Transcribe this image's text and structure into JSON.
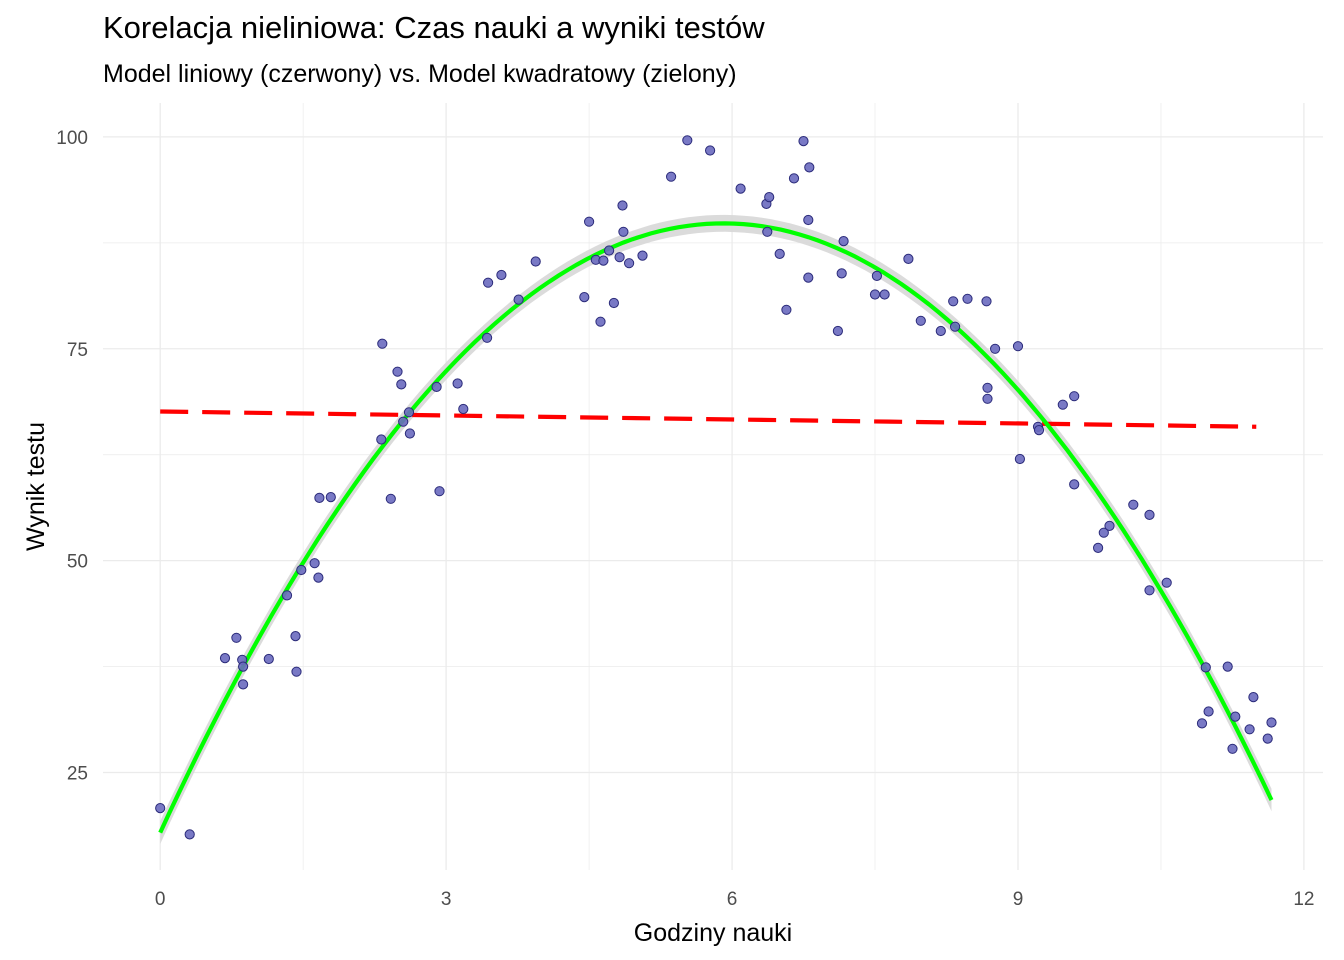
{
  "chart_data": {
    "type": "scatter",
    "title": "Korelacja nieliniowa: Czas nauki a wyniki testów",
    "subtitle": "Model liniowy (czerwony) vs. Model kwadratowy (zielony)",
    "xlabel": "Godziny nauki",
    "ylabel": "Wynik testu",
    "xlim": [
      -0.6,
      12.2
    ],
    "ylim": [
      13.5,
      104
    ],
    "xticks": [
      0,
      3,
      6,
      9,
      12
    ],
    "yticks": [
      25,
      50,
      75,
      100
    ],
    "grid": true,
    "colors": {
      "points_fill": "#6a6abf",
      "points_stroke": "#2b2b7a",
      "linear": "#ff0000",
      "quadratic": "#00ff00",
      "ribbon": "#d9d9d9",
      "grid": "#ebebeb"
    },
    "points": [
      [
        0.0,
        20.8
      ],
      [
        0.31,
        17.7
      ],
      [
        0.68,
        38.5
      ],
      [
        0.8,
        40.9
      ],
      [
        0.86,
        38.3
      ],
      [
        0.87,
        37.5
      ],
      [
        0.87,
        35.4
      ],
      [
        1.14,
        38.4
      ],
      [
        1.33,
        45.9
      ],
      [
        1.42,
        41.1
      ],
      [
        1.43,
        36.9
      ],
      [
        1.48,
        48.9
      ],
      [
        1.62,
        49.7
      ],
      [
        1.66,
        48.0
      ],
      [
        1.67,
        57.4
      ],
      [
        1.79,
        57.5
      ],
      [
        2.32,
        64.3
      ],
      [
        2.33,
        75.6
      ],
      [
        2.42,
        57.3
      ],
      [
        2.49,
        72.3
      ],
      [
        2.53,
        70.8
      ],
      [
        2.55,
        66.4
      ],
      [
        2.61,
        67.5
      ],
      [
        2.62,
        65.0
      ],
      [
        2.9,
        70.5
      ],
      [
        2.93,
        58.2
      ],
      [
        3.12,
        70.9
      ],
      [
        3.18,
        67.9
      ],
      [
        3.43,
        76.3
      ],
      [
        3.44,
        82.8
      ],
      [
        3.58,
        83.7
      ],
      [
        3.76,
        80.8
      ],
      [
        3.94,
        85.3
      ],
      [
        4.45,
        81.1
      ],
      [
        4.5,
        90.0
      ],
      [
        4.57,
        85.5
      ],
      [
        4.62,
        78.2
      ],
      [
        4.65,
        85.4
      ],
      [
        4.71,
        86.6
      ],
      [
        4.76,
        80.4
      ],
      [
        4.82,
        85.8
      ],
      [
        4.85,
        91.9
      ],
      [
        4.86,
        88.8
      ],
      [
        4.92,
        85.1
      ],
      [
        5.06,
        86.0
      ],
      [
        5.36,
        95.3
      ],
      [
        5.53,
        99.6
      ],
      [
        5.77,
        98.4
      ],
      [
        6.09,
        93.9
      ],
      [
        6.36,
        92.1
      ],
      [
        6.37,
        88.8
      ],
      [
        6.39,
        92.9
      ],
      [
        6.5,
        86.2
      ],
      [
        6.57,
        79.6
      ],
      [
        6.65,
        95.1
      ],
      [
        6.75,
        99.5
      ],
      [
        6.8,
        90.2
      ],
      [
        6.8,
        83.4
      ],
      [
        6.81,
        96.4
      ],
      [
        7.11,
        77.1
      ],
      [
        7.15,
        83.9
      ],
      [
        7.17,
        87.7
      ],
      [
        7.5,
        81.4
      ],
      [
        7.52,
        83.6
      ],
      [
        7.6,
        81.4
      ],
      [
        7.85,
        85.6
      ],
      [
        7.98,
        78.3
      ],
      [
        8.19,
        77.1
      ],
      [
        8.32,
        80.6
      ],
      [
        8.34,
        77.6
      ],
      [
        8.47,
        80.9
      ],
      [
        8.67,
        80.6
      ],
      [
        8.68,
        70.4
      ],
      [
        8.68,
        69.1
      ],
      [
        8.76,
        75.0
      ],
      [
        9.0,
        75.3
      ],
      [
        9.02,
        62.0
      ],
      [
        9.21,
        65.8
      ],
      [
        9.22,
        65.4
      ],
      [
        9.47,
        68.4
      ],
      [
        9.59,
        69.4
      ],
      [
        9.59,
        59.0
      ],
      [
        9.84,
        51.5
      ],
      [
        9.9,
        53.3
      ],
      [
        9.96,
        54.1
      ],
      [
        10.21,
        56.6
      ],
      [
        10.38,
        55.4
      ],
      [
        10.38,
        46.5
      ],
      [
        10.56,
        47.4
      ],
      [
        10.97,
        37.4
      ],
      [
        11.0,
        32.2
      ],
      [
        10.93,
        30.8
      ],
      [
        11.2,
        37.5
      ],
      [
        11.28,
        31.6
      ],
      [
        11.25,
        27.8
      ],
      [
        11.43,
        30.1
      ],
      [
        11.47,
        33.9
      ],
      [
        11.62,
        29.0
      ],
      [
        11.66,
        30.9
      ]
    ],
    "series": [
      {
        "type": "linear",
        "style": "dashed",
        "x": [
          0.0,
          11.5
        ],
        "y": [
          67.6,
          65.8
        ]
      },
      {
        "type": "quadratic",
        "x_range": [
          0.0,
          11.66
        ],
        "vertex_x": 5.91,
        "vertex_y": 89.8,
        "a": -2.058,
        "ribbon": true
      }
    ]
  }
}
